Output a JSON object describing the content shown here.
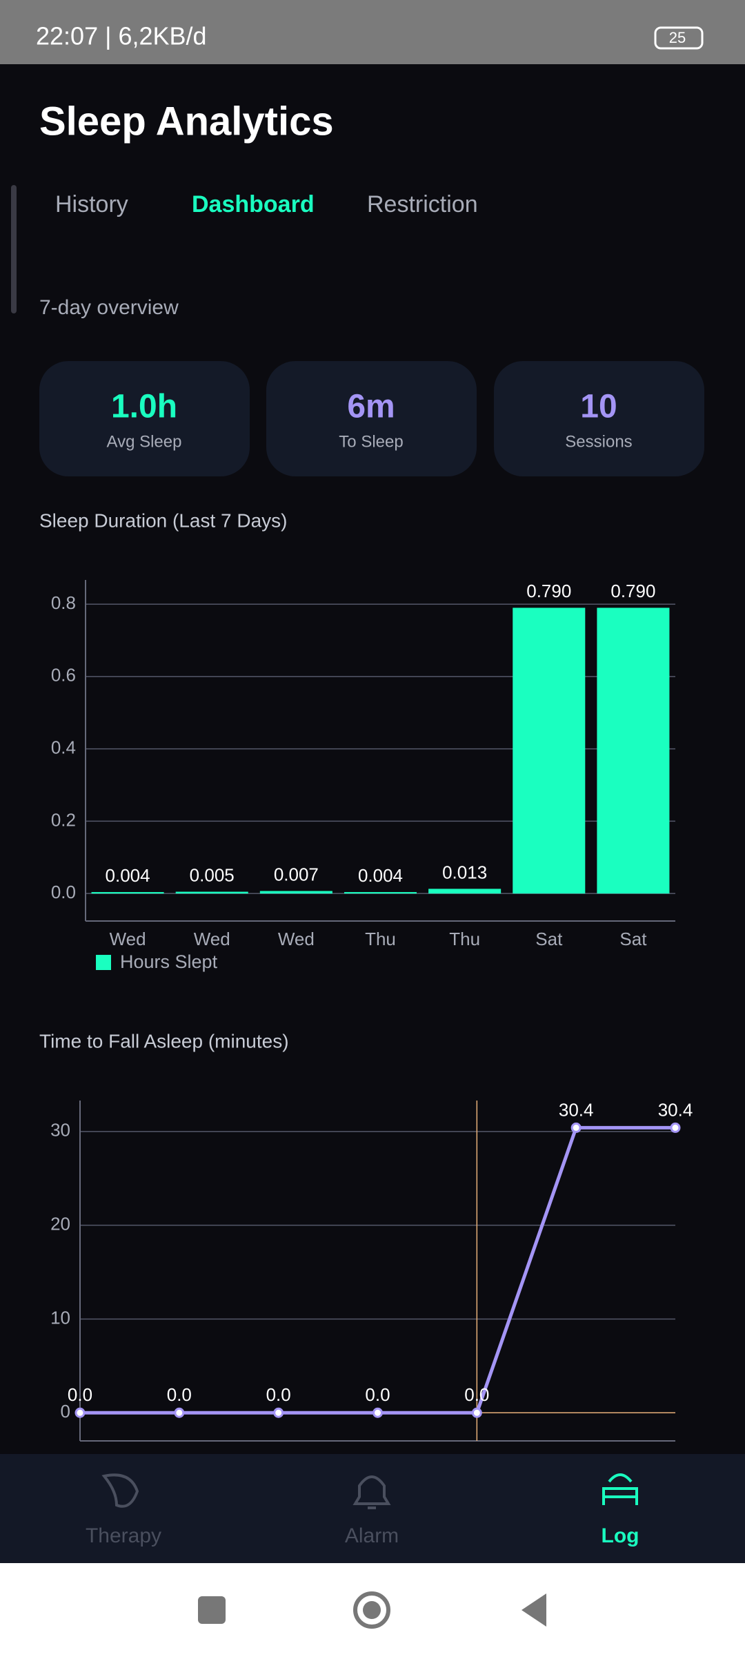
{
  "status_bar": {
    "time": "22:07 | 6,2KB/d",
    "battery": "25"
  },
  "header": {
    "title": "Sleep Analytics"
  },
  "tabs": [
    "History",
    "Dashboard",
    "Restriction"
  ],
  "section_label": "7-day overview",
  "stats": [
    {
      "value": "1.0h",
      "label": "Avg Sleep",
      "color": "#1affc0"
    },
    {
      "value": "6m",
      "label": "To Sleep",
      "color": "#a495f5"
    },
    {
      "value": "10",
      "label": "Sessions",
      "color": "#a495f5"
    }
  ],
  "chart_data": [
    {
      "type": "bar",
      "title": "Sleep Duration (Last 7 Days)",
      "categories": [
        "Wed",
        "Wed",
        "Wed",
        "Thu",
        "Thu",
        "Sat",
        "Sat"
      ],
      "series": [
        {
          "name": "Hours Slept",
          "color": "#1affc0",
          "values": [
            0.004,
            0.005,
            0.007,
            0.004,
            0.013,
            0.79,
            0.79
          ],
          "value_labels": [
            "0.004",
            "0.005",
            "0.007",
            "0.004",
            "0.013",
            "0.790",
            "0.790"
          ]
        }
      ],
      "ylim": [
        -0.076,
        0.867
      ],
      "yticks": [
        {
          "value": 0,
          "label": "0.0"
        },
        {
          "value": 0.2,
          "label": "0.2"
        },
        {
          "value": 0.4,
          "label": "0.4"
        },
        {
          "value": 0.6,
          "label": "0.6"
        },
        {
          "value": 0.8,
          "label": "0.8"
        }
      ],
      "grid": true,
      "legend": "bottom-left"
    },
    {
      "type": "line",
      "title": "Time to Fall Asleep (minutes)",
      "categories": [
        null,
        null,
        null,
        null,
        null,
        null,
        null
      ],
      "series": [
        {
          "name": null,
          "color": "#a495f5",
          "values": [
            0,
            0,
            0,
            0,
            0,
            30.4,
            30.4
          ],
          "value_labels": [
            "0.0",
            "0.0",
            "0.0",
            "0.0",
            "0.0",
            "30.4",
            "30.4"
          ]
        }
      ],
      "ylim": [
        -3.0,
        33.3
      ],
      "yticks": [
        0,
        10,
        20,
        30
      ],
      "grid": true
    }
  ],
  "nav": [
    "Therapy",
    "Alarm",
    "Log"
  ]
}
